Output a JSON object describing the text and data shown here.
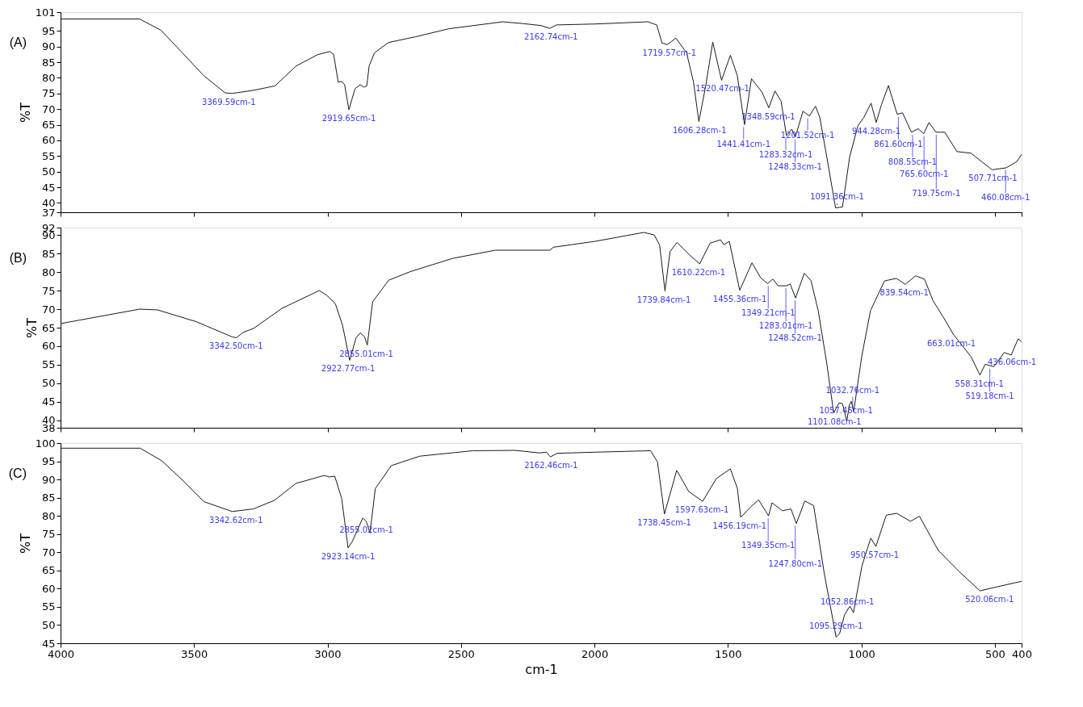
{
  "chart_data": [
    {
      "type": "line",
      "title": "(A)",
      "ylabel": "%T",
      "xlim": [
        4000,
        400
      ],
      "xticks": [
        4000,
        3500,
        3000,
        2500,
        2000,
        1500,
        1000,
        500,
        400
      ],
      "ylim": [
        37,
        101
      ],
      "yticks": [
        37,
        40,
        45,
        50,
        55,
        60,
        65,
        70,
        75,
        80,
        85,
        90,
        95,
        101
      ],
      "tick_labels": "y",
      "grid": false,
      "legend": false,
      "series": [
        {
          "color": "#1a1a1a",
          "x": [
            4000,
            3704,
            3624,
            3544,
            3464,
            3384,
            3357,
            3277,
            3197,
            3117,
            3037,
            2991,
            2977,
            2960,
            2947,
            2936,
            2920,
            2897,
            2877,
            2864,
            2853,
            2844,
            2824,
            2771,
            2671,
            2544,
            2344,
            2264,
            2200,
            2168,
            2142,
            1997,
            1800,
            1767,
            1747,
            1727,
            1695,
            1655,
            1629,
            1609,
            1583,
            1557,
            1524,
            1491,
            1465,
            1438,
            1412,
            1373,
            1347,
            1324,
            1301,
            1281,
            1261,
            1248,
            1219,
            1195,
            1172,
            1156,
            1130,
            1097,
            1071,
            1044,
            1013,
            991,
            964,
            945,
            925,
            899,
            866,
            846,
            813,
            787,
            767,
            747,
            721,
            688,
            642,
            590,
            511,
            458,
            418,
            400
          ],
          "values": [
            98.8,
            98.8,
            95.2,
            88,
            80.7,
            75.2,
            75,
            76,
            77.4,
            83.8,
            87.4,
            88.4,
            87.4,
            78.6,
            78.8,
            77.8,
            69.8,
            76.5,
            77.8,
            77,
            77.4,
            83.8,
            88,
            91.3,
            93.1,
            95.7,
            97.9,
            97.3,
            96.7,
            95.8,
            96.9,
            97.2,
            97.9,
            96.9,
            91.1,
            90.6,
            92.7,
            88,
            78.6,
            66,
            77.6,
            91.4,
            79.2,
            87.2,
            80.7,
            65,
            79.7,
            75.5,
            70.4,
            75.8,
            72.5,
            61.5,
            63.6,
            61,
            69.3,
            67.8,
            70.9,
            67.3,
            54.8,
            38.4,
            38.7,
            54.8,
            64.7,
            67.3,
            71.9,
            65.7,
            71.4,
            77.5,
            68.3,
            68.8,
            62.6,
            63.7,
            62.1,
            65.7,
            62.6,
            62.6,
            56.4,
            55.9,
            50.6,
            51.2,
            53.2,
            55.5
          ]
        }
      ],
      "annotations": [
        {
          "text": "3369.59cm-1",
          "x": 3369.59,
          "y": 75
        },
        {
          "text": "2919.65cm-1",
          "x": 2919.65,
          "y": 69.8
        },
        {
          "text": "2162.74cm-1",
          "x": 2162.74,
          "y": 95.8
        },
        {
          "text": "1719.57cm-1",
          "x": 1719.57,
          "y": 90.6
        },
        {
          "text": "1606.28cm-1",
          "x": 1606.28,
          "y": 66
        },
        {
          "text": "1520.47cm-1",
          "x": 1520.47,
          "y": 79.2
        },
        {
          "text": "1441.41cm-1",
          "x": 1441.41,
          "y": 65
        },
        {
          "text": "1348.59cm-1",
          "x": 1348.59,
          "y": 70.4
        },
        {
          "text": "1283.32cm-1",
          "x": 1283.32,
          "y": 61.5
        },
        {
          "text": "1248.33cm-1",
          "x": 1248.33,
          "y": 61
        },
        {
          "text": "1201.52cm-1",
          "x": 1201.52,
          "y": 67.8
        },
        {
          "text": "1091.36cm-1",
          "x": 1091.36,
          "y": 38.5
        },
        {
          "text": "944.28cm-1",
          "x": 944.28,
          "y": 65.7
        },
        {
          "text": "861.60cm-1",
          "x": 861.6,
          "y": 68.3
        },
        {
          "text": "808.55cm-1",
          "x": 808.55,
          "y": 62.6
        },
        {
          "text": "765.60cm-1",
          "x": 765.6,
          "y": 62.1
        },
        {
          "text": "719.75cm-1",
          "x": 719.75,
          "y": 62.6
        },
        {
          "text": "507.71cm-1",
          "x": 507.71,
          "y": 50.6
        },
        {
          "text": "460.08cm-1",
          "x": 460.08,
          "y": 51.2
        }
      ]
    },
    {
      "type": "line",
      "title": "(B)",
      "ylabel": "%T",
      "xlim": [
        4000,
        400
      ],
      "xticks": [
        4000,
        3500,
        3000,
        2500,
        2000,
        1500,
        1000,
        500,
        400
      ],
      "ylim": [
        38,
        92
      ],
      "yticks": [
        38,
        40,
        45,
        50,
        55,
        60,
        65,
        70,
        75,
        80,
        85,
        90,
        92
      ],
      "tick_labels": "y",
      "grid": false,
      "legend": false,
      "series": [
        {
          "color": "#1a1a1a",
          "x": [
            4000,
            3704,
            3637,
            3491,
            3357,
            3341,
            3317,
            3277,
            3171,
            3031,
            3004,
            2971,
            2944,
            2917,
            2893,
            2877,
            2861,
            2851,
            2831,
            2771,
            2691,
            2531,
            2371,
            2200,
            2167,
            2154,
            1997,
            1815,
            1776,
            1756,
            1736,
            1717,
            1691,
            1645,
            1606,
            1567,
            1528,
            1515,
            1495,
            1456,
            1410,
            1378,
            1352,
            1332,
            1312,
            1280,
            1267,
            1247,
            1214,
            1189,
            1162,
            1130,
            1104,
            1084,
            1071,
            1055,
            1045,
            1038,
            1029,
            999,
            966,
            914,
            869,
            836,
            797,
            764,
            732,
            693,
            654,
            628,
            589,
            556,
            537,
            504,
            465,
            439,
            413,
            400
          ],
          "values": [
            66.1,
            70,
            69.8,
            66.6,
            62.5,
            62.3,
            63.7,
            64.8,
            70.2,
            75,
            73.8,
            71.5,
            65.7,
            56.2,
            62.3,
            63.6,
            62.5,
            60.3,
            72,
            77.8,
            80.1,
            83.7,
            85.9,
            85.9,
            85.9,
            86.7,
            88.3,
            90.7,
            90,
            87.3,
            74.9,
            85.5,
            88,
            84.7,
            82.2,
            87.8,
            88.7,
            87.4,
            88.3,
            75.1,
            82.5,
            78.5,
            76.9,
            78.1,
            76.3,
            76.3,
            76.8,
            73,
            79.7,
            77.7,
            69.6,
            55.4,
            42,
            44.7,
            44.5,
            39.8,
            44.2,
            45.1,
            42.4,
            57.2,
            69.6,
            77.6,
            78.3,
            76.7,
            79,
            78.1,
            72.3,
            67.8,
            63,
            60.7,
            57.1,
            52.2,
            55.1,
            54.5,
            58.3,
            57.6,
            62,
            61.2
          ]
        }
      ],
      "annotations": [
        {
          "text": "3342.50cm-1",
          "x": 3342.5,
          "y": 62.3
        },
        {
          "text": "2922.77cm-1",
          "x": 2922.77,
          "y": 56.2
        },
        {
          "text": "2855.01cm-1",
          "x": 2855.01,
          "y": 60.3
        },
        {
          "text": "1739.84cm-1",
          "x": 1739.84,
          "y": 74.9
        },
        {
          "text": "1610.22cm-1",
          "x": 1610.22,
          "y": 82.2
        },
        {
          "text": "1455.36cm-1",
          "x": 1455.36,
          "y": 75.1
        },
        {
          "text": "1349.21cm-1",
          "x": 1349.21,
          "y": 76.9
        },
        {
          "text": "1283.01cm-1",
          "x": 1283.01,
          "y": 76.3
        },
        {
          "text": "1248.52cm-1",
          "x": 1248.52,
          "y": 73
        },
        {
          "text": "1101.08cm-1",
          "x": 1101.08,
          "y": 42
        },
        {
          "text": "1057.45cm-1",
          "x": 1057.45,
          "y": 39.8
        },
        {
          "text": "1032.76cm-1",
          "x": 1032.76,
          "y": 42.4
        },
        {
          "text": "839.54cm-1",
          "x": 839.54,
          "y": 76.7
        },
        {
          "text": "663.01cm-1",
          "x": 663.01,
          "y": 63
        },
        {
          "text": "558.31cm-1",
          "x": 558.31,
          "y": 52.2
        },
        {
          "text": "519.18cm-1",
          "x": 519.18,
          "y": 54.5
        },
        {
          "text": "436.06cm-1",
          "x": 436.06,
          "y": 58
        }
      ]
    },
    {
      "type": "line",
      "title": "(C)",
      "xlabel": "cm-1",
      "ylabel": "%T",
      "xlim": [
        4000,
        400
      ],
      "xticks": [
        4000,
        3500,
        3000,
        2500,
        2000,
        1500,
        1000,
        500,
        400
      ],
      "ylim": [
        45,
        100
      ],
      "yticks": [
        45,
        50,
        55,
        60,
        65,
        70,
        75,
        80,
        85,
        90,
        95,
        100
      ],
      "grid": false,
      "legend": false,
      "series": [
        {
          "color": "#1a1a1a",
          "x": [
            4000,
            3702,
            3622,
            3543,
            3463,
            3357,
            3278,
            3198,
            3119,
            3013,
            2993,
            2973,
            2947,
            2923,
            2907,
            2868,
            2855,
            2841,
            2821,
            2761,
            2655,
            2456,
            2297,
            2207,
            2180,
            2165,
            2140,
            1998,
            1790,
            1764,
            1738,
            1692,
            1647,
            1595,
            1543,
            1491,
            1465,
            1452,
            1413,
            1385,
            1348,
            1335,
            1296,
            1264,
            1244,
            1212,
            1179,
            1140,
            1095,
            1082,
            1063,
            1043,
            1030,
            998,
            965,
            946,
            907,
            868,
            816,
            783,
            712,
            634,
            556,
            504,
            426,
            400
          ],
          "values": [
            98.6,
            98.6,
            95.2,
            89.8,
            83.9,
            81.2,
            81.9,
            84.3,
            88.9,
            91.1,
            90.7,
            90.9,
            84.8,
            71.2,
            73,
            79.4,
            78.5,
            75.3,
            87.5,
            93.8,
            96.4,
            97.9,
            98,
            97.3,
            97.5,
            96.2,
            97.2,
            97.5,
            97.9,
            94.8,
            80.5,
            92.5,
            86.7,
            84,
            90.3,
            92.9,
            87.6,
            79.6,
            82.6,
            84.4,
            80,
            83.6,
            81.4,
            81.9,
            77.9,
            84.1,
            82.8,
            64.5,
            46.7,
            47.6,
            52.9,
            55.2,
            53.4,
            66.3,
            73.9,
            71.6,
            80.2,
            80.7,
            78.5,
            79.9,
            70.5,
            64.7,
            59.4,
            60.3,
            61.6,
            62
          ]
        }
      ],
      "annotations": [
        {
          "text": "3342.62cm-1",
          "x": 3342.62,
          "y": 81.2
        },
        {
          "text": "2923.14cm-1",
          "x": 2923.14,
          "y": 71.2
        },
        {
          "text": "2855.02cm-1",
          "x": 2855.02,
          "y": 78.5
        },
        {
          "text": "2162.46cm-1",
          "x": 2162.46,
          "y": 96.2
        },
        {
          "text": "1738.45cm-1",
          "x": 1738.45,
          "y": 80.5
        },
        {
          "text": "1597.63cm-1",
          "x": 1597.63,
          "y": 84
        },
        {
          "text": "1456.19cm-1",
          "x": 1456.19,
          "y": 79.6
        },
        {
          "text": "1349.35cm-1",
          "x": 1349.35,
          "y": 80
        },
        {
          "text": "1247.80cm-1",
          "x": 1247.8,
          "y": 77.9
        },
        {
          "text": "1095.29cm-1",
          "x": 1095.29,
          "y": 46.7
        },
        {
          "text": "1052.86cm-1",
          "x": 1052.86,
          "y": 53.4
        },
        {
          "text": "950.57cm-1",
          "x": 950.57,
          "y": 71.6
        },
        {
          "text": "520.06cm-1",
          "x": 520.06,
          "y": 59.4
        }
      ]
    }
  ]
}
